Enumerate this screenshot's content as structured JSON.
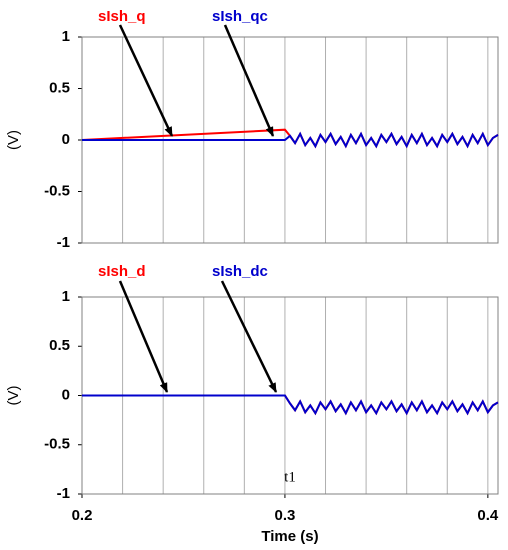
{
  "chart_data": [
    {
      "type": "line",
      "y_label": "(V)",
      "x": [
        0.2,
        0.3,
        0.3025,
        0.305,
        0.3075,
        0.31,
        0.3125,
        0.315,
        0.3175,
        0.32,
        0.3225,
        0.325,
        0.3275,
        0.33,
        0.3325,
        0.335,
        0.3375,
        0.34,
        0.3425,
        0.345,
        0.3475,
        0.35,
        0.3525,
        0.355,
        0.3575,
        0.36,
        0.3625,
        0.365,
        0.3675,
        0.37,
        0.3725,
        0.375,
        0.3775,
        0.38,
        0.3825,
        0.385,
        0.3875,
        0.39,
        0.3925,
        0.395,
        0.3975,
        0.4,
        0.4025,
        0.405
      ],
      "series": [
        {
          "name": "sIsh_q",
          "color": "#ff0000",
          "values": [
            0,
            0.1,
            0.04,
            -0.03,
            0.06,
            -0.05,
            0.02,
            -0.06,
            0.05,
            -0.02,
            0.06,
            -0.04,
            0.03,
            -0.06,
            0.05,
            -0.03,
            0.06,
            -0.05,
            0.02,
            -0.06,
            0.05,
            -0.02,
            0.06,
            -0.04,
            0.03,
            -0.06,
            0.05,
            -0.03,
            0.06,
            -0.05,
            0.02,
            -0.06,
            0.05,
            -0.02,
            0.06,
            -0.04,
            0.03,
            -0.06,
            0.05,
            -0.03,
            0.06,
            -0.05,
            0.02,
            0.05
          ]
        },
        {
          "name": "sIsh_qc",
          "color": "#0000cc",
          "values": [
            0,
            0,
            0.04,
            -0.03,
            0.06,
            -0.05,
            0.02,
            -0.06,
            0.05,
            -0.02,
            0.06,
            -0.04,
            0.03,
            -0.06,
            0.05,
            -0.03,
            0.06,
            -0.05,
            0.02,
            -0.06,
            0.05,
            -0.02,
            0.06,
            -0.04,
            0.03,
            -0.06,
            0.05,
            -0.03,
            0.06,
            -0.05,
            0.02,
            -0.06,
            0.05,
            -0.02,
            0.06,
            -0.04,
            0.03,
            -0.06,
            0.05,
            -0.03,
            0.06,
            -0.05,
            0.02,
            0.05
          ]
        }
      ],
      "xlim": [
        0.2,
        0.405
      ],
      "ylim": [
        -1,
        1
      ],
      "yticks": [
        1,
        0.5,
        0,
        -0.5,
        -1
      ],
      "x_grid": [
        0.22,
        0.24,
        0.26,
        0.28,
        0.3,
        0.32,
        0.34,
        0.36,
        0.38,
        0.4
      ],
      "grid": true
    },
    {
      "type": "line",
      "y_label": "(V)",
      "x_label": "Time (s)",
      "annotation": "t1",
      "x": [
        0.2,
        0.3,
        0.3025,
        0.305,
        0.3075,
        0.31,
        0.3125,
        0.315,
        0.3175,
        0.32,
        0.3225,
        0.325,
        0.3275,
        0.33,
        0.3325,
        0.335,
        0.3375,
        0.34,
        0.3425,
        0.345,
        0.3475,
        0.35,
        0.3525,
        0.355,
        0.3575,
        0.36,
        0.3625,
        0.365,
        0.3675,
        0.37,
        0.3725,
        0.375,
        0.3775,
        0.38,
        0.3825,
        0.385,
        0.3875,
        0.39,
        0.3925,
        0.395,
        0.3975,
        0.4,
        0.4025,
        0.405
      ],
      "series": [
        {
          "name": "sIsh_d",
          "color": "#ff0000",
          "values": [
            0,
            0,
            -0.08,
            -0.15,
            -0.06,
            -0.17,
            -0.1,
            -0.18,
            -0.07,
            -0.14,
            -0.06,
            -0.16,
            -0.09,
            -0.18,
            -0.07,
            -0.15,
            -0.06,
            -0.17,
            -0.1,
            -0.18,
            -0.07,
            -0.14,
            -0.06,
            -0.16,
            -0.09,
            -0.18,
            -0.07,
            -0.15,
            -0.06,
            -0.17,
            -0.1,
            -0.18,
            -0.07,
            -0.14,
            -0.06,
            -0.16,
            -0.09,
            -0.18,
            -0.07,
            -0.15,
            -0.06,
            -0.17,
            -0.1,
            -0.07
          ]
        },
        {
          "name": "sIsh_dc",
          "color": "#0000cc",
          "values": [
            0,
            0,
            -0.08,
            -0.15,
            -0.06,
            -0.17,
            -0.1,
            -0.18,
            -0.07,
            -0.14,
            -0.06,
            -0.16,
            -0.09,
            -0.18,
            -0.07,
            -0.15,
            -0.06,
            -0.17,
            -0.1,
            -0.18,
            -0.07,
            -0.14,
            -0.06,
            -0.16,
            -0.09,
            -0.18,
            -0.07,
            -0.15,
            -0.06,
            -0.17,
            -0.1,
            -0.18,
            -0.07,
            -0.14,
            -0.06,
            -0.16,
            -0.09,
            -0.18,
            -0.07,
            -0.15,
            -0.06,
            -0.17,
            -0.1,
            -0.07
          ]
        }
      ],
      "xlim": [
        0.2,
        0.405
      ],
      "ylim": [
        -1,
        1
      ],
      "yticks": [
        1,
        0.5,
        0,
        -0.5,
        -1
      ],
      "xticks": [
        0.2,
        0.3,
        0.4
      ],
      "x_grid": [
        0.22,
        0.24,
        0.26,
        0.28,
        0.3,
        0.32,
        0.34,
        0.36,
        0.38,
        0.4
      ],
      "grid": true
    }
  ]
}
